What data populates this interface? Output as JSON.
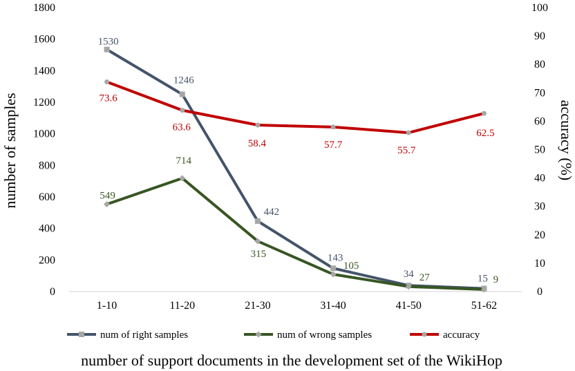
{
  "chart_data": {
    "type": "line",
    "title": "",
    "xlabel": "number of support documents in the development set of the WikiHop",
    "ylabel_left": "number of samples",
    "ylabel_right": "accuracy (%)",
    "categories": [
      "1-10",
      "11-20",
      "21-30",
      "31-40",
      "41-50",
      "51-62"
    ],
    "ylim_left": [
      0,
      1800
    ],
    "yticks_left": [
      "0",
      "200",
      "400",
      "600",
      "800",
      "1000",
      "1200",
      "1400",
      "1600",
      "1800"
    ],
    "ylim_right": [
      0,
      100
    ],
    "yticks_right": [
      "0",
      "10",
      "20",
      "30",
      "40",
      "50",
      "60",
      "70",
      "80",
      "90",
      "100"
    ],
    "grid": false,
    "legend_position": "bottom",
    "series": [
      {
        "name": "num of right samples",
        "axis": "left",
        "color": "#44546a",
        "marker": "square",
        "values": [
          1530,
          1246,
          442,
          143,
          34,
          15
        ],
        "labels": [
          "1530",
          "1246",
          "442",
          "143",
          "34",
          "15"
        ]
      },
      {
        "name": "num of wrong samples",
        "axis": "left",
        "color": "#375623",
        "marker": "diamond",
        "values": [
          549,
          714,
          315,
          105,
          27,
          9
        ],
        "labels": [
          "549",
          "714",
          "315",
          "105",
          "27",
          "9"
        ]
      },
      {
        "name": "accuracy",
        "axis": "right",
        "color": "#c00000",
        "marker": "circle",
        "values": [
          73.6,
          63.6,
          58.4,
          57.7,
          55.7,
          62.5
        ],
        "labels": [
          "73.6",
          "63.6",
          "58.4",
          "57.7",
          "55.7",
          "62.5"
        ]
      }
    ]
  }
}
